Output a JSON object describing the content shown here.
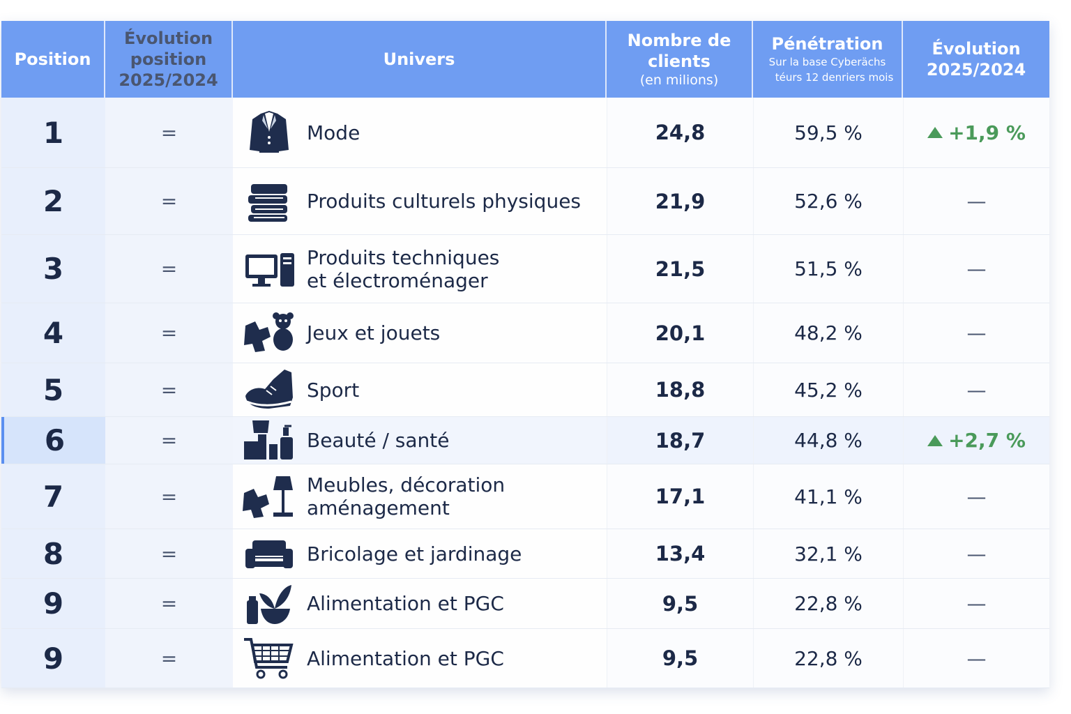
{
  "header": {
    "position": "Position",
    "evolution_position": [
      "Évolution",
      "position",
      "2025/2024"
    ],
    "univers": "Univers",
    "clients": [
      "Nombre de",
      "clients",
      "(en milions)"
    ],
    "penetration": "Pénétration",
    "penetration_sub": [
      "Sur la base Cyberächs",
      "téurs 12 denriers mois"
    ],
    "evolution": [
      "Évolution",
      "2025/2024"
    ]
  },
  "colors": {
    "header": "#6f9df2",
    "text": "#1c2947",
    "positive": "#4a9a5a",
    "highlight": "#5b8ff0"
  },
  "rows": [
    {
      "position": "1",
      "evo_pos": "=",
      "icon": "jacket-icon",
      "univers": [
        "Mode"
      ],
      "clients": "24,8",
      "penetration": "59,5 %",
      "evolution": "+1,9 %",
      "trend": "up"
    },
    {
      "position": "2",
      "evo_pos": "=",
      "icon": "books-icon",
      "univers": [
        "Produits culturels physiques"
      ],
      "clients": "21,9",
      "penetration": "52,6 %",
      "evolution": "—"
    },
    {
      "position": "3",
      "evo_pos": "=",
      "icon": "computer-icon",
      "univers": [
        "Produits techniques",
        "et électroménager"
      ],
      "clients": "21,5",
      "penetration": "51,5 %",
      "evolution": "—"
    },
    {
      "position": "4",
      "evo_pos": "=",
      "icon": "toys-icon",
      "univers": [
        "Jeux et jouets"
      ],
      "clients": "20,1",
      "penetration": "48,2 %",
      "evolution": "—"
    },
    {
      "position": "5",
      "evo_pos": "=",
      "icon": "sneaker-icon",
      "univers": [
        "Sport"
      ],
      "clients": "18,8",
      "penetration": "45,2 %",
      "evolution": "—"
    },
    {
      "position": "6",
      "evo_pos": "=",
      "icon": "beauty-products-icon",
      "univers": [
        "Beauté / santé"
      ],
      "clients": "18,7",
      "penetration": "44,8 %",
      "evolution": "+2,7 %",
      "trend": "up",
      "highlighted": true
    },
    {
      "position": "7",
      "evo_pos": "=",
      "icon": "furniture-lamp-icon",
      "univers": [
        "Meubles, décoration",
        "aménagement"
      ],
      "clients": "17,1",
      "penetration": "41,1 %",
      "evolution": "—"
    },
    {
      "position": "8",
      "evo_pos": "=",
      "icon": "sofa-icon",
      "univers": [
        "Bricolage et jardinage"
      ],
      "clients": "13,4",
      "penetration": "32,1 %",
      "evolution": "—"
    },
    {
      "position": "9",
      "evo_pos": "=",
      "icon": "plant-icon",
      "univers": [
        "Alimentation et PGC"
      ],
      "clients": "9,5",
      "penetration": "22,8 %",
      "evolution": "—"
    },
    {
      "position": "9",
      "evo_pos": "=",
      "icon": "shopping-cart-icon",
      "univers": [
        "Alimentation et PGC"
      ],
      "clients": "9,5",
      "penetration": "22,8 %",
      "evolution": "—"
    }
  ]
}
